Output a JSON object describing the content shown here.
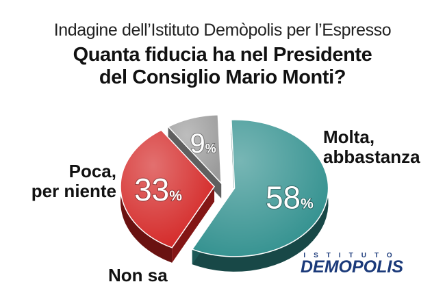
{
  "header": {
    "subtitle": "Indagine dell’Istituto Demòpolis per l’Espresso",
    "title_line1": "Quanta fiducia ha nel Presidente",
    "title_line2": "del Consiglio Mario Monti?"
  },
  "chart_data": {
    "type": "pie",
    "title": "Quanta fiducia ha nel Presidente del Consiglio Mario Monti?",
    "subtitle": "Indagine dell’Istituto Demòpolis per l’Espresso",
    "slices": [
      {
        "label_line1": "Molta,",
        "label_line2": "abbastanza",
        "value": 58,
        "value_label": "58",
        "unit": "%",
        "color": "#2f8f8d"
      },
      {
        "label_line1": "Poca,",
        "label_line2": "per niente",
        "value": 33,
        "value_label": "33",
        "unit": "%",
        "color": "#d32322"
      },
      {
        "label_line1": "Non sa",
        "label_line2": "",
        "value": 9,
        "value_label": "9",
        "unit": "%",
        "color": "#9a9a9a"
      }
    ]
  },
  "logo": {
    "top_text": "ISTITUTO",
    "main_text": "DEMOPOLIS",
    "color": "#1b3a7a"
  }
}
